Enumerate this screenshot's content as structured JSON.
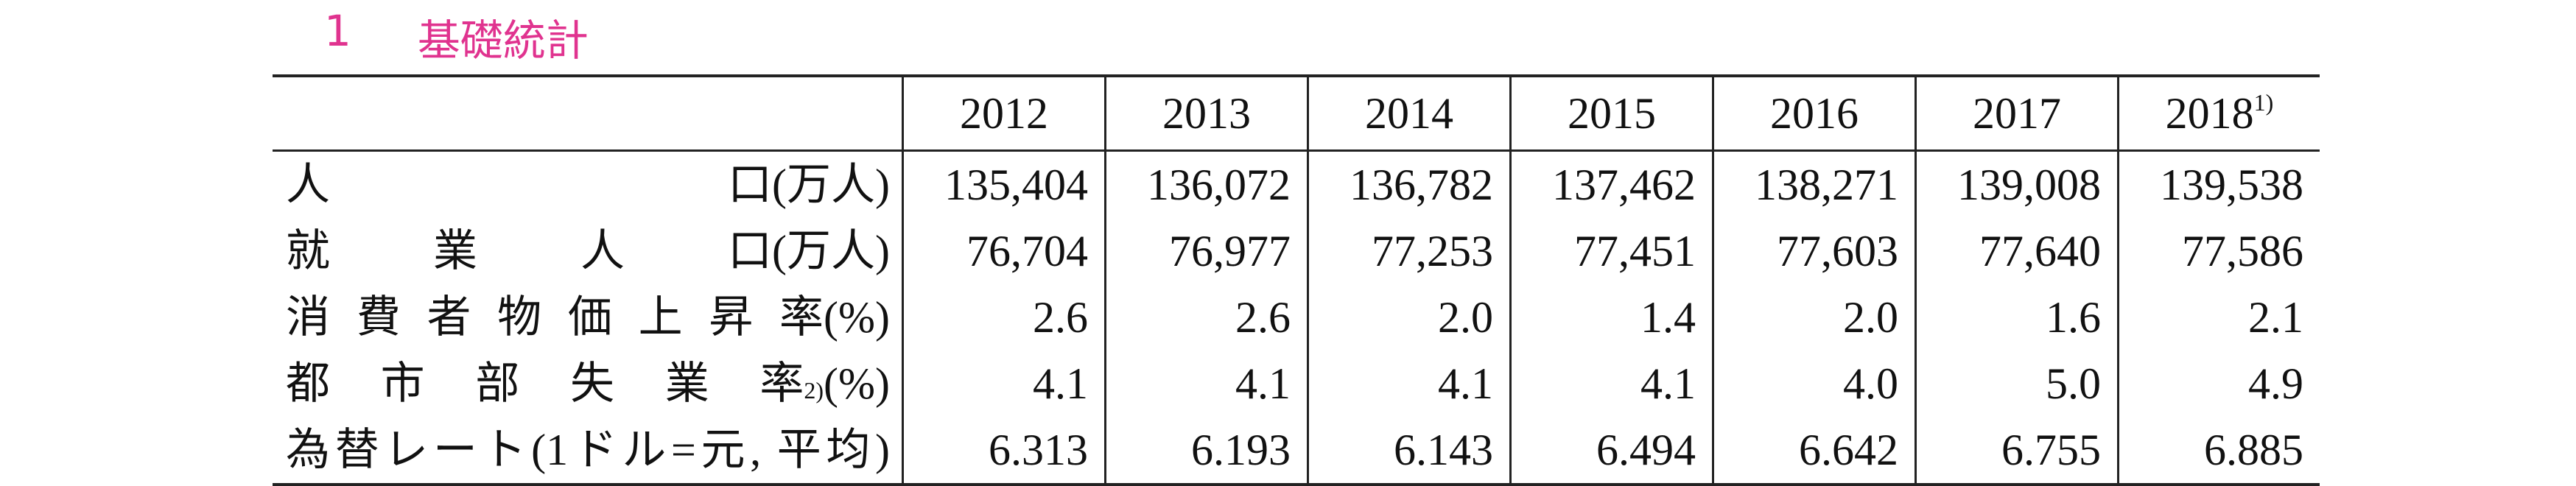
{
  "title": {
    "number": "1",
    "text": "基礎統計"
  },
  "table": {
    "columns": [
      {
        "label": "2012"
      },
      {
        "label": "2013"
      },
      {
        "label": "2014"
      },
      {
        "label": "2015"
      },
      {
        "label": "2016"
      },
      {
        "label": "2017"
      },
      {
        "label": "2018",
        "note": "1)"
      }
    ],
    "rows": [
      {
        "label": "人口",
        "unit": "(万人)",
        "values": [
          "135,404",
          "136,072",
          "136,782",
          "137,462",
          "138,271",
          "139,008",
          "139,538"
        ]
      },
      {
        "label": "就業人口",
        "unit": "(万人)",
        "values": [
          "76,704",
          "76,977",
          "77,253",
          "77,451",
          "77,603",
          "77,640",
          "77,586"
        ]
      },
      {
        "label": "消費者物価上昇率",
        "unit": "(%)",
        "values": [
          "2.6",
          "2.6",
          "2.0",
          "1.4",
          "2.0",
          "1.6",
          "2.1"
        ]
      },
      {
        "label": "都市部失業率",
        "note": "2)",
        "unit": "(%)",
        "values": [
          "4.1",
          "4.1",
          "4.1",
          "4.1",
          "4.0",
          "5.0",
          "4.9"
        ]
      },
      {
        "label": "為替レート(1ドル=元, 平均)",
        "values": [
          "6.313",
          "6.193",
          "6.143",
          "6.494",
          "6.642",
          "6.755",
          "6.885"
        ]
      }
    ]
  }
}
